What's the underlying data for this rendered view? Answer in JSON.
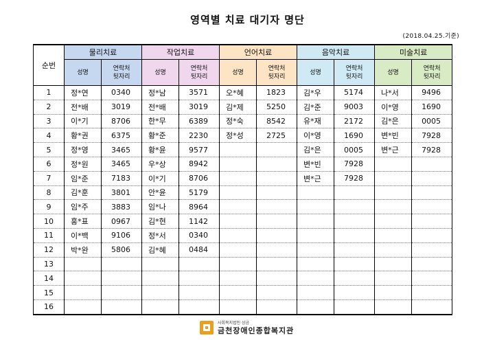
{
  "title": "영역별 치료 대기자 명단",
  "date_note": "(2018.04.25.기준)",
  "no_header": "순번",
  "columns_sub": {
    "name": "성명",
    "phone_l1": "연락처",
    "phone_l2": "뒷자리"
  },
  "groups": [
    {
      "name": "물리치료",
      "color": "#c6d8f0"
    },
    {
      "name": "작업치료",
      "color": "#f0d7ee"
    },
    {
      "name": "언어치료",
      "color": "#fce4c4"
    },
    {
      "name": "음악치료",
      "color": "#cfeaf4"
    },
    {
      "name": "미술치료",
      "color": "#d8ebc4"
    }
  ],
  "rows": [
    {
      "no": "1",
      "cells": [
        [
          "정*연",
          "0340"
        ],
        [
          "정*남",
          "3571"
        ],
        [
          "오*혜",
          "1823"
        ],
        [
          "김*우",
          "5174"
        ],
        [
          "나*서",
          "9496"
        ]
      ]
    },
    {
      "no": "2",
      "cells": [
        [
          "전*배",
          "3019"
        ],
        [
          "전*배",
          "3019"
        ],
        [
          "김*제",
          "5250"
        ],
        [
          "김*준",
          "9003"
        ],
        [
          "이*영",
          "1690"
        ]
      ]
    },
    {
      "no": "3",
      "cells": [
        [
          "이*기",
          "8706"
        ],
        [
          "한*무",
          "6389"
        ],
        [
          "정*숙",
          "8542"
        ],
        [
          "유*재",
          "2172"
        ],
        [
          "김*은",
          "0005"
        ]
      ]
    },
    {
      "no": "4",
      "cells": [
        [
          "황*권",
          "6375"
        ],
        [
          "황*준",
          "2230"
        ],
        [
          "정*성",
          "2725"
        ],
        [
          "이*영",
          "1690"
        ],
        [
          "변*빈",
          "7928"
        ]
      ]
    },
    {
      "no": "5",
      "cells": [
        [
          "정*영",
          "3465"
        ],
        [
          "황*윤",
          "9577"
        ],
        [
          "",
          ""
        ],
        [
          "김*은",
          "0005"
        ],
        [
          "변*근",
          "7928"
        ]
      ]
    },
    {
      "no": "6",
      "cells": [
        [
          "정*원",
          "3465"
        ],
        [
          "우*상",
          "8942"
        ],
        [
          "",
          ""
        ],
        [
          "변*빈",
          "7928"
        ],
        [
          "",
          ""
        ]
      ]
    },
    {
      "no": "7",
      "cells": [
        [
          "임*준",
          "7183"
        ],
        [
          "이*기",
          "8706"
        ],
        [
          "",
          ""
        ],
        [
          "변*근",
          "7928"
        ],
        [
          "",
          ""
        ]
      ]
    },
    {
      "no": "8",
      "cells": [
        [
          "김*훈",
          "3801"
        ],
        [
          "안*윤",
          "5179"
        ],
        [
          "",
          ""
        ],
        [
          "",
          ""
        ],
        [
          "",
          ""
        ]
      ]
    },
    {
      "no": "9",
      "cells": [
        [
          "임*주",
          "3883"
        ],
        [
          "임*나",
          "8964"
        ],
        [
          "",
          ""
        ],
        [
          "",
          ""
        ],
        [
          "",
          ""
        ]
      ]
    },
    {
      "no": "10",
      "cells": [
        [
          "홍*표",
          "0967"
        ],
        [
          "김*현",
          "1142"
        ],
        [
          "",
          ""
        ],
        [
          "",
          ""
        ],
        [
          "",
          ""
        ]
      ]
    },
    {
      "no": "11",
      "cells": [
        [
          "이*백",
          "9106"
        ],
        [
          "정*서",
          "0340"
        ],
        [
          "",
          ""
        ],
        [
          "",
          ""
        ],
        [
          "",
          ""
        ]
      ]
    },
    {
      "no": "12",
      "cells": [
        [
          "박*완",
          "5806"
        ],
        [
          "김*혜",
          "0484"
        ],
        [
          "",
          ""
        ],
        [
          "",
          ""
        ],
        [
          "",
          ""
        ]
      ]
    },
    {
      "no": "13",
      "cells": [
        [
          "",
          ""
        ],
        [
          "",
          ""
        ],
        [
          "",
          ""
        ],
        [
          "",
          ""
        ],
        [
          "",
          ""
        ]
      ]
    },
    {
      "no": "14",
      "cells": [
        [
          "",
          ""
        ],
        [
          "",
          ""
        ],
        [
          "",
          ""
        ],
        [
          "",
          ""
        ],
        [
          "",
          ""
        ]
      ]
    },
    {
      "no": "15",
      "cells": [
        [
          "",
          ""
        ],
        [
          "",
          ""
        ],
        [
          "",
          ""
        ],
        [
          "",
          ""
        ],
        [
          "",
          ""
        ]
      ]
    },
    {
      "no": "16",
      "cells": [
        [
          "",
          ""
        ],
        [
          "",
          ""
        ],
        [
          "",
          ""
        ],
        [
          "",
          ""
        ],
        [
          "",
          ""
        ]
      ]
    }
  ],
  "logo": {
    "small": "사회복지법인 상금",
    "big": "금천장애인종합복지관",
    "icon": "welfare-center-logo-icon",
    "color": "#e8a020"
  }
}
